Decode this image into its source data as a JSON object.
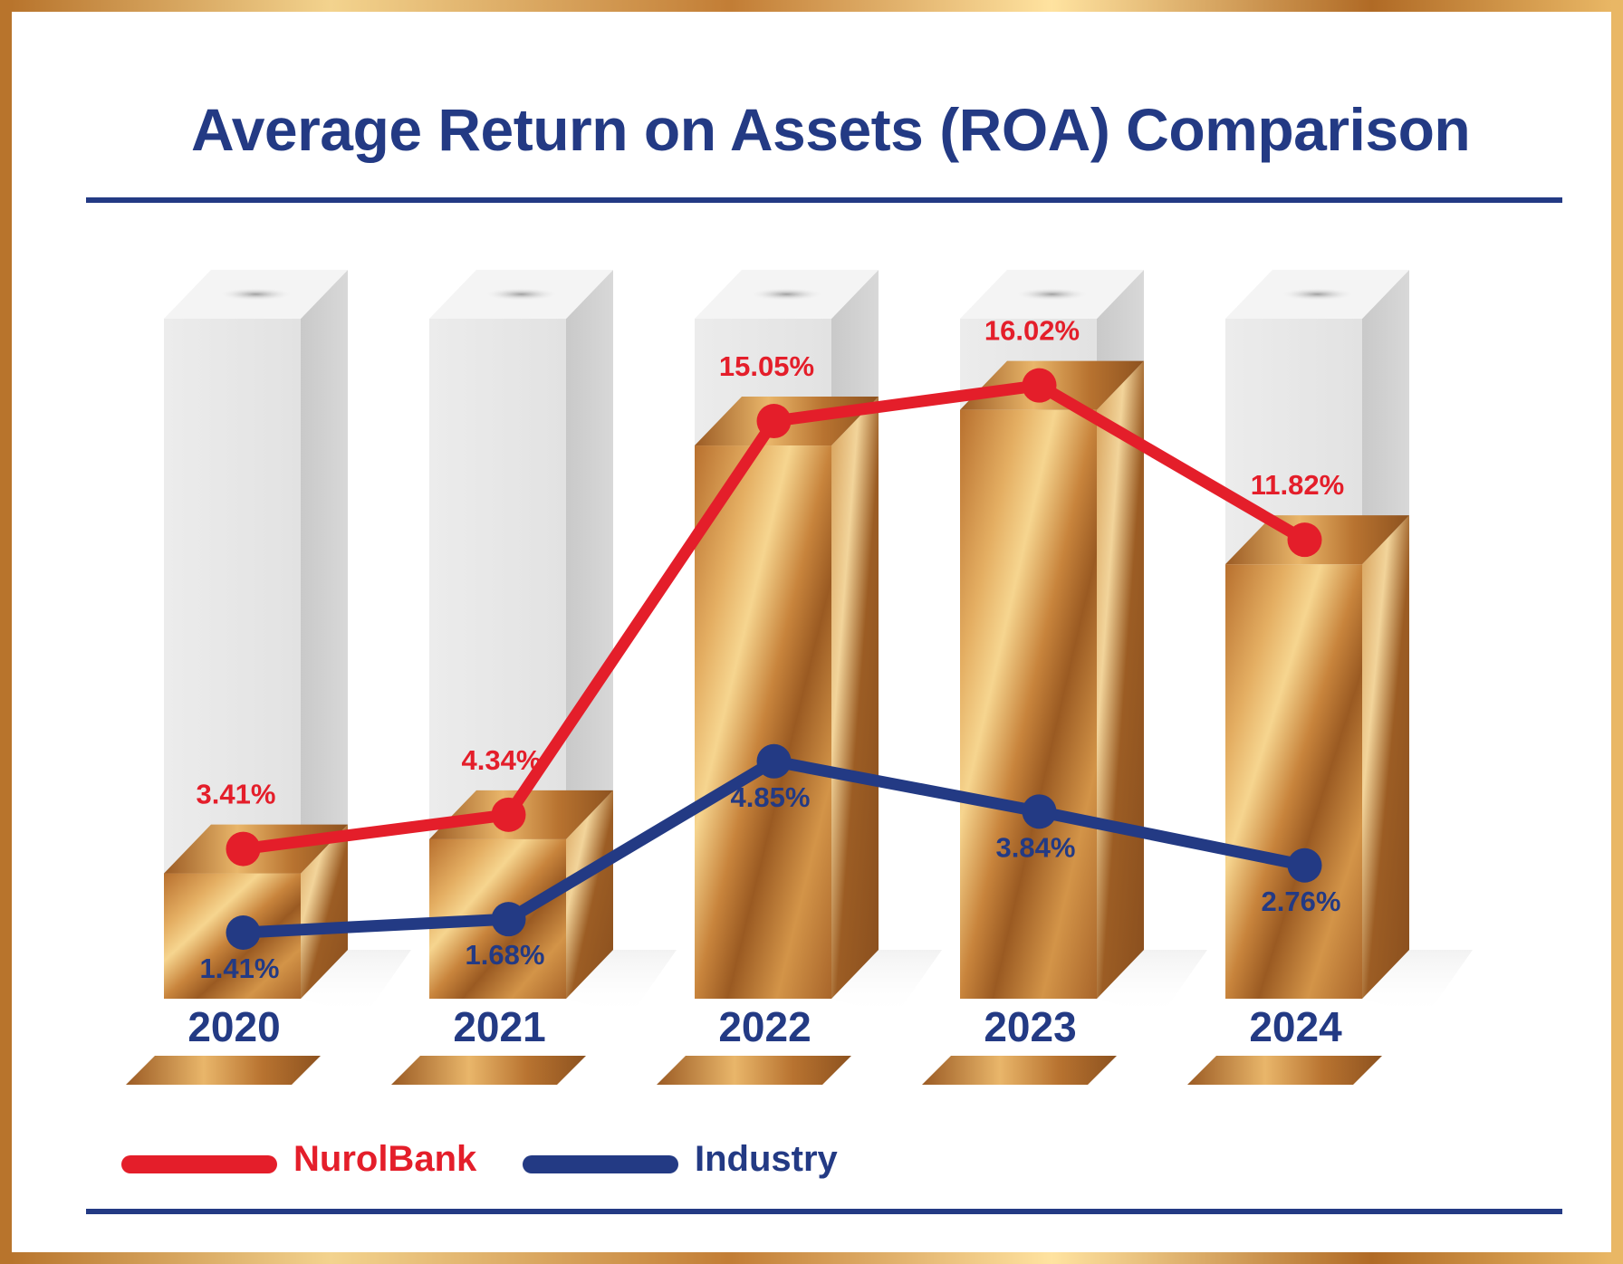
{
  "title": "Average Return on Assets (ROA) Comparison",
  "colors": {
    "nurol": "#e41e2a",
    "industry": "#233a84",
    "frame": "#c98a3c",
    "bar_gold": "#c47a34",
    "bar_placeholder": "#e6e6e6"
  },
  "legend": {
    "nurol_label": "NurolBank",
    "industry_label": "Industry"
  },
  "chart_data": {
    "type": "bar",
    "title": "Average Return on Assets (ROA) Comparison",
    "categories": [
      "2020",
      "2021",
      "2022",
      "2023",
      "2024"
    ],
    "series": [
      {
        "name": "NurolBank",
        "values": [
          3.41,
          4.34,
          15.05,
          16.02,
          11.82
        ],
        "labels": [
          "3.41%",
          "4.34%",
          "15.05%",
          "16.02%",
          "11.82%"
        ],
        "color": "#e41e2a",
        "render": "bars+line"
      },
      {
        "name": "Industry",
        "values": [
          1.41,
          1.68,
          4.85,
          3.84,
          2.76
        ],
        "labels": [
          "1.41%",
          "1.68%",
          "4.85%",
          "3.84%",
          "2.76%"
        ],
        "color": "#233a84",
        "render": "line"
      }
    ],
    "unit": "%",
    "xlabel": "",
    "ylabel": "",
    "ylim": [
      0,
      18.5
    ],
    "grid": false,
    "legend_position": "bottom-left"
  }
}
